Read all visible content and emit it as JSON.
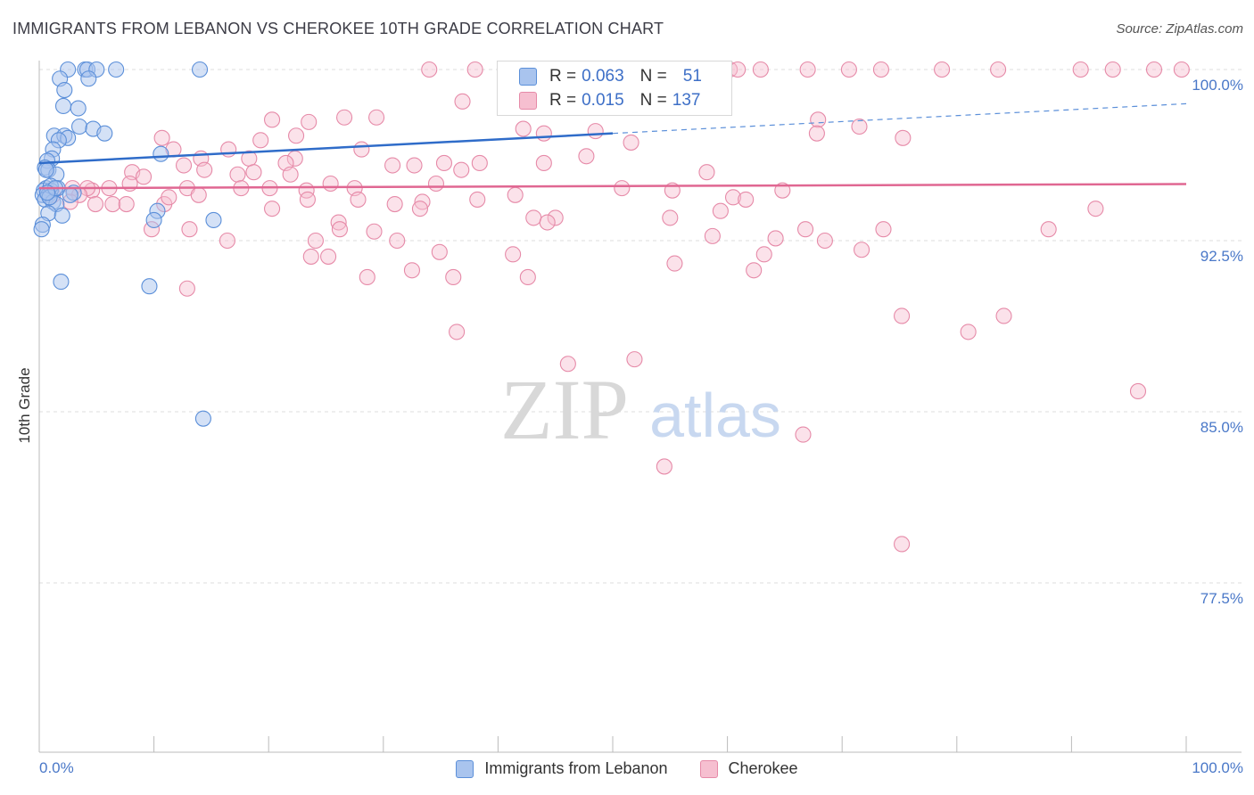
{
  "header": {
    "title": "IMMIGRANTS FROM LEBANON VS CHEROKEE 10TH GRADE CORRELATION CHART",
    "source": "Source: ZipAtlas.com"
  },
  "watermark": {
    "zip": "ZIP",
    "atlas": "atlas"
  },
  "legend_box": {
    "rows": [
      {
        "r_label": "R =",
        "r_value": "0.063",
        "n_label": "N =",
        "n_value": "51"
      },
      {
        "r_label": "R =",
        "r_value": "0.015",
        "n_label": "N =",
        "n_value": "137"
      }
    ]
  },
  "bottom_legend": {
    "items": [
      "Immigrants from Lebanon",
      "Cherokee"
    ]
  },
  "colors": {
    "blue_fill": "#a9c4ee",
    "blue_stroke": "#5b8fd9",
    "blue_line": "#2f6cc9",
    "pink_fill": "#f6bfd0",
    "pink_stroke": "#e68aa8",
    "pink_line": "#e06792",
    "tick_text": "#4a78c8",
    "grid": "#dddddd"
  },
  "chart_data": {
    "type": "scatter",
    "title": "IMMIGRANTS FROM LEBANON VS CHEROKEE 10TH GRADE CORRELATION CHART",
    "xlabel": "",
    "ylabel": "10th Grade",
    "xlim": [
      0,
      100
    ],
    "ylim": [
      70,
      100.8
    ],
    "x_tick_labels": [
      "0.0%",
      "100.0%"
    ],
    "y_ticks": [
      77.5,
      85.0,
      92.5,
      100.0
    ],
    "y_tick_labels": [
      "77.5%",
      "85.0%",
      "92.5%",
      "100.0%"
    ],
    "grid": true,
    "legend_position": "top-center",
    "series": [
      {
        "name": "Immigrants from Lebanon",
        "color": "#5b8fd9",
        "R": 0.063,
        "N": 51,
        "trend": {
          "x0": 0,
          "y0": 95.9,
          "x1": 50,
          "y1": 97.2,
          "dash_to_x": 100,
          "dash_to_y": 98.5
        },
        "points": [
          [
            2.5,
            100
          ],
          [
            4,
            100
          ],
          [
            4.2,
            100
          ],
          [
            5,
            100
          ],
          [
            6.7,
            100
          ],
          [
            14,
            100
          ],
          [
            1.8,
            99.6
          ],
          [
            4.3,
            99.6
          ],
          [
            2.2,
            99.1
          ],
          [
            2.1,
            98.4
          ],
          [
            3.4,
            98.3
          ],
          [
            3.5,
            97.5
          ],
          [
            4.7,
            97.4
          ],
          [
            5.7,
            97.2
          ],
          [
            1.3,
            97.1
          ],
          [
            2.2,
            97.1
          ],
          [
            2.5,
            97.0
          ],
          [
            1.7,
            96.9
          ],
          [
            1.2,
            96.5
          ],
          [
            10.6,
            96.3
          ],
          [
            1.1,
            96.1
          ],
          [
            0.7,
            96.0
          ],
          [
            0.5,
            95.7
          ],
          [
            0.8,
            95.6
          ],
          [
            1.5,
            95.4
          ],
          [
            0.6,
            94.8
          ],
          [
            1.6,
            94.8
          ],
          [
            0.4,
            94.7
          ],
          [
            1.0,
            94.7
          ],
          [
            3.0,
            94.6
          ],
          [
            0.3,
            94.5
          ],
          [
            0.8,
            94.5
          ],
          [
            0.5,
            94.3
          ],
          [
            1.2,
            94.2
          ],
          [
            1.5,
            94.1
          ],
          [
            10.3,
            93.8
          ],
          [
            0.8,
            93.7
          ],
          [
            2.0,
            93.6
          ],
          [
            10.0,
            93.4
          ],
          [
            15.2,
            93.4
          ],
          [
            0.3,
            93.2
          ],
          [
            0.2,
            93.0
          ],
          [
            1.9,
            90.7
          ],
          [
            9.6,
            90.5
          ],
          [
            14.3,
            84.7
          ],
          [
            1.0,
            94.9
          ],
          [
            0.9,
            94.4
          ],
          [
            2.7,
            94.5
          ],
          [
            0.6,
            95.6
          ],
          [
            1.4,
            94.8
          ],
          [
            0.7,
            94.6
          ]
        ]
      },
      {
        "name": "Cherokee",
        "color": "#e68aa8",
        "R": 0.015,
        "N": 137,
        "trend": {
          "x0": 0,
          "y0": 94.8,
          "x1": 100,
          "y1": 94.98
        },
        "points": [
          [
            34.0,
            100
          ],
          [
            38.0,
            100
          ],
          [
            41.8,
            100
          ],
          [
            45.7,
            100
          ],
          [
            50.2,
            100
          ],
          [
            53.0,
            100
          ],
          [
            54.5,
            100
          ],
          [
            60.2,
            100
          ],
          [
            62.9,
            100
          ],
          [
            67.0,
            100
          ],
          [
            70.6,
            100
          ],
          [
            73.4,
            100
          ],
          [
            78.7,
            100
          ],
          [
            83.6,
            100
          ],
          [
            90.8,
            100
          ],
          [
            93.6,
            100
          ],
          [
            97.2,
            100
          ],
          [
            99.6,
            100
          ],
          [
            60.9,
            100
          ],
          [
            52.3,
            99.8
          ],
          [
            36.9,
            98.6
          ],
          [
            29.4,
            97.9
          ],
          [
            26.6,
            97.9
          ],
          [
            20.3,
            97.8
          ],
          [
            10.7,
            97.0
          ],
          [
            23.5,
            97.7
          ],
          [
            67.9,
            97.8
          ],
          [
            42.2,
            97.4
          ],
          [
            48.5,
            97.3
          ],
          [
            71.5,
            97.5
          ],
          [
            75.3,
            97.0
          ],
          [
            67.8,
            97.2
          ],
          [
            22.4,
            97.1
          ],
          [
            19.3,
            96.9
          ],
          [
            51.6,
            96.8
          ],
          [
            11.7,
            96.5
          ],
          [
            16.5,
            96.5
          ],
          [
            28.1,
            96.5
          ],
          [
            14.1,
            96.1
          ],
          [
            18.3,
            96.1
          ],
          [
            22.3,
            96.1
          ],
          [
            21.5,
            95.9
          ],
          [
            47.7,
            96.2
          ],
          [
            38.4,
            95.9
          ],
          [
            44.0,
            95.9
          ],
          [
            35.3,
            95.9
          ],
          [
            30.8,
            95.8
          ],
          [
            32.7,
            95.8
          ],
          [
            12.6,
            95.8
          ],
          [
            14.4,
            95.6
          ],
          [
            21.9,
            95.4
          ],
          [
            17.3,
            95.4
          ],
          [
            18.7,
            95.5
          ],
          [
            8.1,
            95.5
          ],
          [
            9.1,
            95.3
          ],
          [
            58.2,
            95.5
          ],
          [
            25.4,
            95.0
          ],
          [
            34.6,
            95.0
          ],
          [
            7.9,
            95.0
          ],
          [
            12.9,
            94.8
          ],
          [
            27.5,
            94.8
          ],
          [
            23.3,
            94.7
          ],
          [
            17.6,
            94.8
          ],
          [
            20.1,
            94.8
          ],
          [
            6.1,
            94.8
          ],
          [
            4.6,
            94.7
          ],
          [
            4.2,
            94.8
          ],
          [
            2.9,
            94.8
          ],
          [
            3.5,
            94.5
          ],
          [
            1.2,
            94.5
          ],
          [
            2.7,
            94.2
          ],
          [
            4.9,
            94.1
          ],
          [
            6.4,
            94.1
          ],
          [
            7.6,
            94.1
          ],
          [
            10.9,
            94.1
          ],
          [
            11.3,
            94.4
          ],
          [
            13.9,
            94.5
          ],
          [
            23.4,
            94.3
          ],
          [
            27.8,
            94.3
          ],
          [
            31.0,
            94.1
          ],
          [
            33.4,
            94.2
          ],
          [
            38.2,
            94.3
          ],
          [
            41.5,
            94.5
          ],
          [
            55.2,
            94.7
          ],
          [
            60.5,
            94.4
          ],
          [
            61.6,
            94.3
          ],
          [
            50.8,
            94.8
          ],
          [
            64.8,
            94.7
          ],
          [
            59.4,
            93.8
          ],
          [
            33.2,
            93.9
          ],
          [
            20.3,
            93.9
          ],
          [
            43.1,
            93.5
          ],
          [
            45.0,
            93.5
          ],
          [
            55.0,
            93.5
          ],
          [
            26.1,
            93.3
          ],
          [
            26.2,
            93.0
          ],
          [
            29.2,
            92.9
          ],
          [
            9.8,
            93.0
          ],
          [
            13.1,
            93.0
          ],
          [
            66.8,
            93.0
          ],
          [
            73.6,
            93.0
          ],
          [
            88.0,
            93.0
          ],
          [
            58.7,
            92.7
          ],
          [
            64.2,
            92.6
          ],
          [
            68.5,
            92.5
          ],
          [
            16.4,
            92.5
          ],
          [
            24.1,
            92.5
          ],
          [
            31.2,
            92.5
          ],
          [
            71.7,
            92.1
          ],
          [
            34.9,
            92.0
          ],
          [
            41.3,
            91.9
          ],
          [
            23.7,
            91.8
          ],
          [
            25.2,
            91.8
          ],
          [
            63.2,
            91.9
          ],
          [
            55.4,
            91.5
          ],
          [
            62.3,
            91.2
          ],
          [
            32.5,
            91.2
          ],
          [
            28.6,
            90.9
          ],
          [
            36.1,
            90.9
          ],
          [
            42.6,
            90.9
          ],
          [
            12.9,
            90.4
          ],
          [
            75.2,
            89.2
          ],
          [
            84.1,
            89.2
          ],
          [
            36.4,
            88.5
          ],
          [
            81.0,
            88.5
          ],
          [
            46.1,
            87.1
          ],
          [
            51.9,
            87.3
          ],
          [
            95.8,
            85.9
          ],
          [
            66.6,
            84.0
          ],
          [
            54.5,
            82.6
          ],
          [
            75.2,
            79.2
          ],
          [
            92.1,
            93.9
          ],
          [
            44.3,
            93.3
          ],
          [
            36.8,
            95.6
          ],
          [
            44.0,
            97.2
          ]
        ]
      }
    ]
  }
}
